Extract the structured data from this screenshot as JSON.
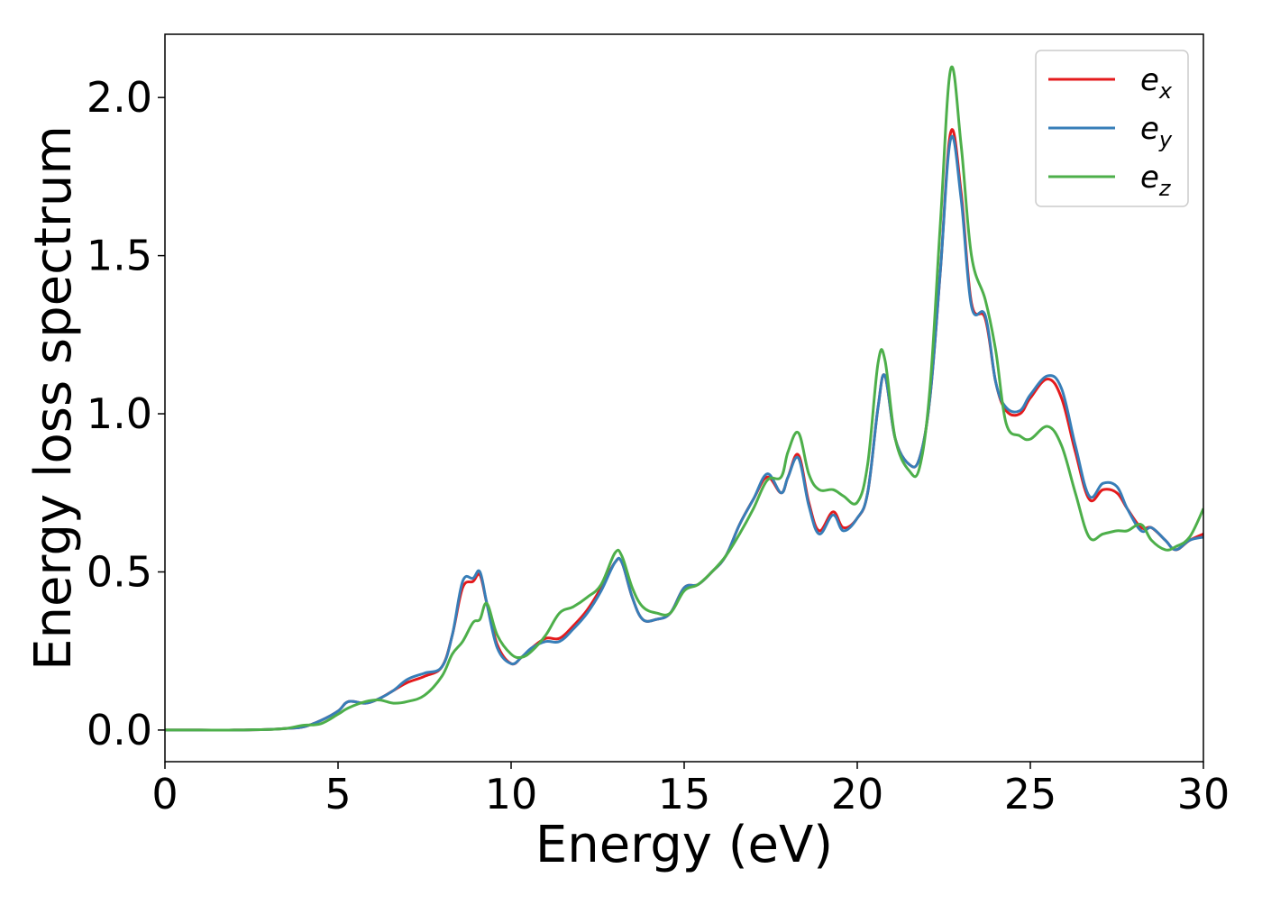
{
  "chart_data": {
    "type": "line",
    "title": "",
    "xlabel": "Energy (eV)",
    "ylabel": "Energy loss spectrum",
    "xlim": [
      0,
      30
    ],
    "ylim": [
      -0.1,
      2.2
    ],
    "xticks": [
      0,
      5,
      10,
      15,
      20,
      25,
      30
    ],
    "xtick_labels": [
      "0",
      "5",
      "10",
      "15",
      "20",
      "25",
      "30"
    ],
    "yticks": [
      0.0,
      0.5,
      1.0,
      1.5,
      2.0
    ],
    "ytick_labels": [
      "0.0",
      "0.5",
      "1.0",
      "1.5",
      "2.0"
    ],
    "grid": false,
    "legend_position": "top-right",
    "x": [
      0,
      1,
      2,
      3,
      3.5,
      4,
      4.5,
      5,
      5.3,
      5.8,
      6.2,
      6.6,
      7,
      7.5,
      8,
      8.3,
      8.6,
      8.9,
      9.1,
      9.3,
      9.6,
      10,
      10.3,
      10.6,
      11,
      11.4,
      11.8,
      12.2,
      12.6,
      13.0,
      13.2,
      13.5,
      13.8,
      14.2,
      14.6,
      15,
      15.4,
      15.8,
      16.2,
      16.6,
      17.0,
      17.4,
      17.8,
      18.0,
      18.3,
      18.6,
      18.9,
      19.3,
      19.6,
      20,
      20.3,
      20.6,
      20.8,
      21.1,
      21.5,
      21.8,
      22.1,
      22.4,
      22.7,
      23.0,
      23.3,
      23.7,
      24.0,
      24.3,
      24.7,
      25.0,
      25.5,
      25.9,
      26.3,
      26.7,
      27.1,
      27.5,
      27.8,
      28.2,
      28.5,
      28.9,
      29.2,
      29.6,
      30
    ],
    "series": [
      {
        "name": "e_x",
        "label_base": "e",
        "label_sub": "x",
        "color": "#e41a1c",
        "values": [
          0,
          0,
          0,
          0.002,
          0.005,
          0.01,
          0.03,
          0.06,
          0.09,
          0.085,
          0.1,
          0.125,
          0.15,
          0.17,
          0.2,
          0.3,
          0.45,
          0.47,
          0.49,
          0.4,
          0.27,
          0.21,
          0.23,
          0.26,
          0.29,
          0.29,
          0.33,
          0.38,
          0.45,
          0.53,
          0.53,
          0.42,
          0.35,
          0.35,
          0.37,
          0.45,
          0.46,
          0.5,
          0.55,
          0.65,
          0.73,
          0.8,
          0.75,
          0.8,
          0.87,
          0.72,
          0.63,
          0.69,
          0.64,
          0.67,
          0.75,
          1.02,
          1.12,
          0.92,
          0.84,
          0.86,
          1.05,
          1.45,
          1.89,
          1.7,
          1.35,
          1.3,
          1.1,
          1.01,
          1.0,
          1.05,
          1.11,
          1.05,
          0.88,
          0.73,
          0.76,
          0.75,
          0.7,
          0.64,
          0.64,
          0.6,
          0.57,
          0.6,
          0.62
        ]
      },
      {
        "name": "e_y",
        "label_base": "e",
        "label_sub": "y",
        "color": "#377eb8",
        "values": [
          0,
          0,
          0,
          0.002,
          0.005,
          0.01,
          0.03,
          0.06,
          0.09,
          0.085,
          0.1,
          0.125,
          0.16,
          0.18,
          0.2,
          0.3,
          0.47,
          0.48,
          0.5,
          0.4,
          0.26,
          0.21,
          0.23,
          0.26,
          0.28,
          0.28,
          0.32,
          0.37,
          0.44,
          0.53,
          0.53,
          0.42,
          0.35,
          0.35,
          0.37,
          0.45,
          0.46,
          0.5,
          0.55,
          0.65,
          0.73,
          0.81,
          0.75,
          0.8,
          0.86,
          0.71,
          0.62,
          0.68,
          0.63,
          0.67,
          0.75,
          1.02,
          1.12,
          0.92,
          0.84,
          0.86,
          1.05,
          1.45,
          1.87,
          1.68,
          1.34,
          1.31,
          1.1,
          1.02,
          1.01,
          1.06,
          1.12,
          1.08,
          0.9,
          0.74,
          0.78,
          0.77,
          0.7,
          0.63,
          0.64,
          0.6,
          0.57,
          0.6,
          0.61
        ]
      },
      {
        "name": "e_z",
        "label_base": "e",
        "label_sub": "z",
        "color": "#4daf4a",
        "values": [
          0,
          0,
          0,
          0.002,
          0.005,
          0.015,
          0.02,
          0.05,
          0.07,
          0.09,
          0.095,
          0.085,
          0.09,
          0.11,
          0.17,
          0.24,
          0.28,
          0.34,
          0.35,
          0.4,
          0.3,
          0.24,
          0.23,
          0.25,
          0.3,
          0.37,
          0.39,
          0.42,
          0.46,
          0.56,
          0.55,
          0.45,
          0.39,
          0.37,
          0.37,
          0.44,
          0.46,
          0.5,
          0.55,
          0.62,
          0.7,
          0.79,
          0.8,
          0.88,
          0.94,
          0.81,
          0.76,
          0.76,
          0.74,
          0.72,
          0.84,
          1.16,
          1.17,
          0.92,
          0.82,
          0.83,
          1.08,
          1.6,
          2.09,
          1.85,
          1.5,
          1.36,
          1.2,
          0.97,
          0.93,
          0.92,
          0.96,
          0.9,
          0.75,
          0.61,
          0.62,
          0.63,
          0.63,
          0.65,
          0.6,
          0.57,
          0.58,
          0.61,
          0.7
        ]
      }
    ]
  }
}
